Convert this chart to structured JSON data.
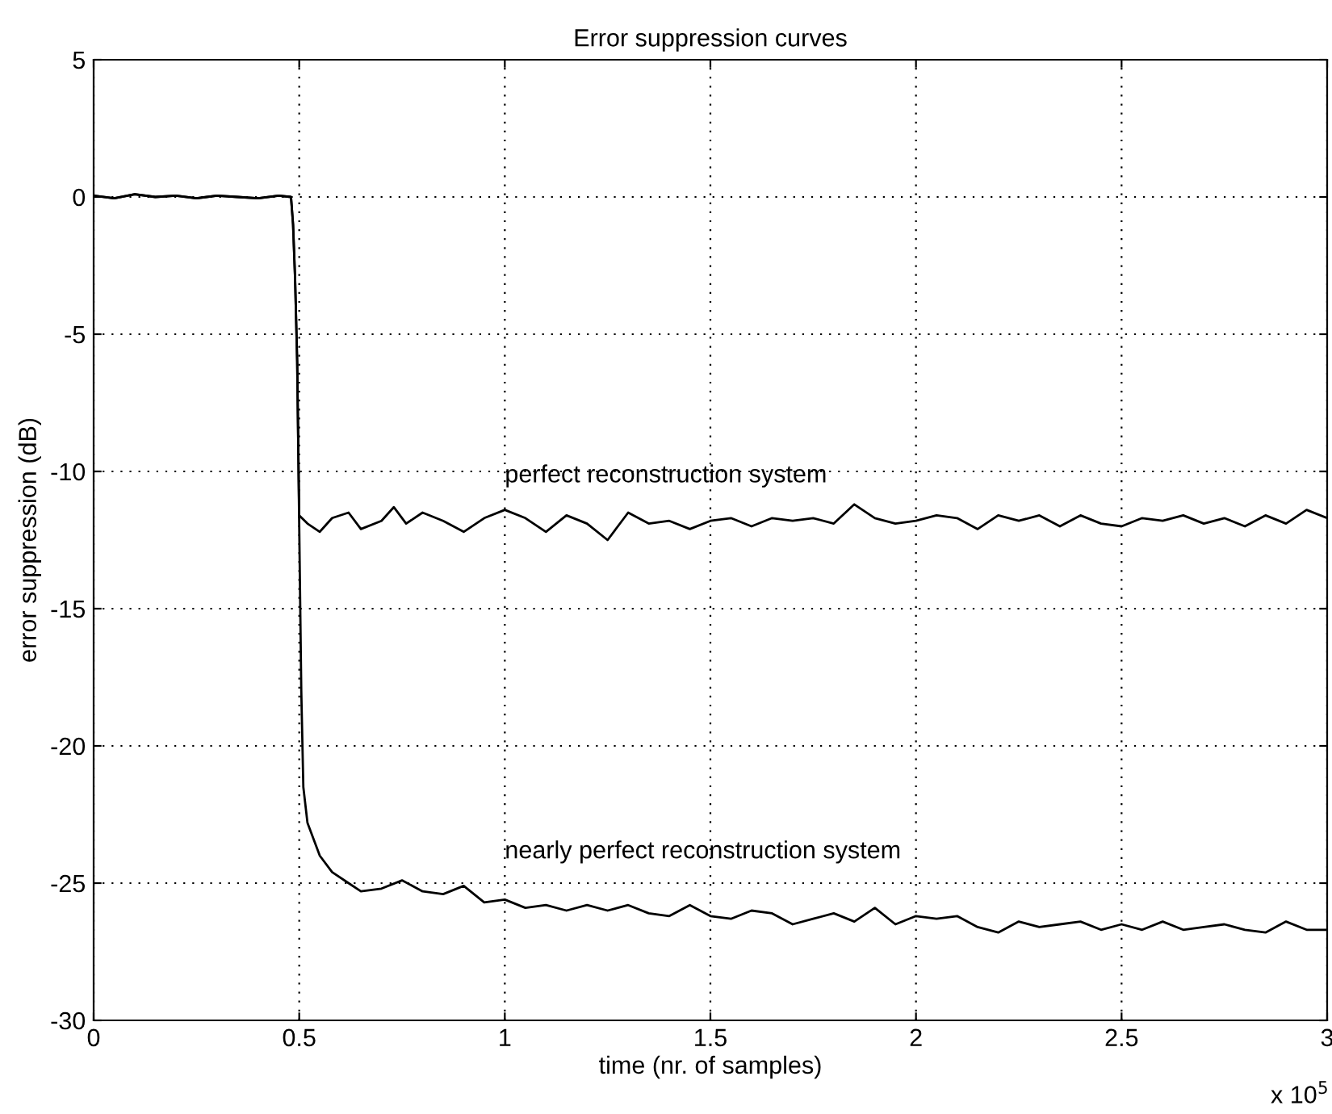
{
  "chart_data": {
    "type": "line",
    "title": "Error suppression curves",
    "xlabel": "time (nr. of samples)",
    "ylabel": "error suppression (dB)",
    "xlim": [
      0,
      3
    ],
    "ylim": [
      -30,
      5
    ],
    "xticks": [
      0,
      0.5,
      1,
      1.5,
      2,
      2.5,
      3
    ],
    "yticks": [
      -30,
      -25,
      -20,
      -15,
      -10,
      -5,
      0,
      5
    ],
    "grid": true,
    "legend": false,
    "marker": "none",
    "line_style": "solid",
    "annotations": [
      "perfect reconstruction system",
      "nearly perfect reconstruction system",
      "x 10$^{5}$"
    ],
    "series": [
      {
        "color": "#000000",
        "x": [
          0,
          0.05,
          0.1,
          0.15,
          0.2,
          0.25,
          0.3,
          0.35,
          0.4,
          0.45,
          0.48,
          0.485,
          0.49,
          0.495,
          0.5,
          0.52,
          0.55,
          0.58,
          0.62,
          0.65,
          0.7,
          0.73,
          0.76,
          0.8,
          0.85,
          0.9,
          0.95,
          1.0,
          1.05,
          1.1,
          1.15,
          1.2,
          1.25,
          1.3,
          1.35,
          1.4,
          1.45,
          1.5,
          1.55,
          1.6,
          1.65,
          1.7,
          1.75,
          1.8,
          1.85,
          1.9,
          1.95,
          2.0,
          2.05,
          2.1,
          2.15,
          2.2,
          2.25,
          2.3,
          2.35,
          2.4,
          2.45,
          2.5,
          2.55,
          2.6,
          2.65,
          2.7,
          2.75,
          2.8,
          2.85,
          2.9,
          2.95,
          3.0
        ],
        "values": [
          0.05,
          -0.05,
          0.1,
          0,
          0.05,
          -0.05,
          0.05,
          0,
          -0.05,
          0.05,
          0,
          -1,
          -3,
          -6,
          -11.6,
          -11.9,
          -12.2,
          -11.7,
          -11.5,
          -12.1,
          -11.8,
          -11.3,
          -11.9,
          -11.5,
          -11.8,
          -12.2,
          -11.7,
          -11.4,
          -11.7,
          -12.2,
          -11.6,
          -11.9,
          -12.5,
          -11.5,
          -11.9,
          -11.8,
          -12.1,
          -11.8,
          -11.7,
          -12.0,
          -11.7,
          -11.8,
          -11.7,
          -11.9,
          -11.2,
          -11.7,
          -11.9,
          -11.8,
          -11.6,
          -11.7,
          -12.1,
          -11.6,
          -11.8,
          -11.6,
          -12.0,
          -11.6,
          -11.9,
          -12.0,
          -11.7,
          -11.8,
          -11.6,
          -11.9,
          -11.7,
          -12.0,
          -11.6,
          -11.9,
          -11.4,
          -11.7
        ]
      },
      {
        "color": "#000000",
        "x": [
          0,
          0.05,
          0.1,
          0.15,
          0.2,
          0.25,
          0.3,
          0.35,
          0.4,
          0.45,
          0.48,
          0.485,
          0.49,
          0.495,
          0.5,
          0.505,
          0.51,
          0.52,
          0.55,
          0.58,
          0.62,
          0.65,
          0.7,
          0.75,
          0.8,
          0.85,
          0.9,
          0.95,
          1.0,
          1.05,
          1.1,
          1.15,
          1.2,
          1.25,
          1.3,
          1.35,
          1.4,
          1.45,
          1.5,
          1.55,
          1.6,
          1.65,
          1.7,
          1.75,
          1.8,
          1.85,
          1.9,
          1.95,
          2.0,
          2.05,
          2.1,
          2.15,
          2.2,
          2.25,
          2.3,
          2.35,
          2.4,
          2.45,
          2.5,
          2.55,
          2.6,
          2.65,
          2.7,
          2.75,
          2.8,
          2.85,
          2.9,
          2.95,
          3.0
        ],
        "values": [
          0.05,
          -0.05,
          0.1,
          0,
          0.05,
          -0.05,
          0.05,
          0,
          -0.05,
          0.05,
          0,
          -1,
          -3,
          -6,
          -12,
          -18,
          -21.5,
          -22.8,
          -24.0,
          -24.6,
          -25.0,
          -25.3,
          -25.2,
          -24.9,
          -25.3,
          -25.4,
          -25.1,
          -25.7,
          -25.6,
          -25.9,
          -25.8,
          -26.0,
          -25.8,
          -26.0,
          -25.8,
          -26.1,
          -26.2,
          -25.8,
          -26.2,
          -26.3,
          -26.0,
          -26.1,
          -26.5,
          -26.3,
          -26.1,
          -26.4,
          -25.9,
          -26.5,
          -26.2,
          -26.3,
          -26.2,
          -26.6,
          -26.8,
          -26.4,
          -26.6,
          -26.5,
          -26.4,
          -26.7,
          -26.5,
          -26.7,
          -26.4,
          -26.7,
          -26.6,
          -26.5,
          -26.7,
          -26.8,
          -26.4,
          -26.7,
          -26.7
        ]
      }
    ]
  }
}
